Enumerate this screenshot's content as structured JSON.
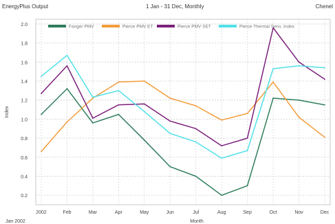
{
  "header": {
    "left": "EnergyPlus Output",
    "center": "1 Jan - 31 Dec, Monthly",
    "right": "Chenel"
  },
  "chart_data": {
    "type": "line",
    "xlabel": "Month",
    "ylabel": "Index",
    "categories": [
      "2002",
      "Feb",
      "Mar",
      "Apr",
      "May",
      "Jun",
      "Jul",
      "Aug",
      "Sep",
      "Oct",
      "Nov",
      "Dec"
    ],
    "x_sub_label": "Jan 2002",
    "ylim": [
      0.1,
      2.05
    ],
    "yticks": [
      "2.0",
      "1.8",
      "1.6",
      "1.4",
      "1.2",
      "1.0",
      "0.8",
      "0.6",
      "0.4",
      "0.2"
    ],
    "grid": true,
    "legend_position": "top",
    "series": [
      {
        "name": "Fanger PMV",
        "color": "#2e7d5b",
        "values": [
          1.05,
          1.32,
          0.96,
          1.05,
          0.78,
          0.5,
          0.4,
          0.2,
          0.3,
          1.22,
          1.2,
          1.15
        ]
      },
      {
        "name": "Pierce PMV ET",
        "color": "#f39c3a",
        "values": [
          0.66,
          0.97,
          1.22,
          1.39,
          1.4,
          1.22,
          1.14,
          0.99,
          1.06,
          1.39,
          1.02,
          0.81
        ]
      },
      {
        "name": "Pierce PMV SET",
        "color": "#7b1f7a",
        "values": [
          1.27,
          1.56,
          1.01,
          1.15,
          1.16,
          0.98,
          0.9,
          0.72,
          0.8,
          1.96,
          1.6,
          1.42
        ]
      },
      {
        "name": "Pierce Thermal Sens. Index",
        "color": "#4fe0e8",
        "values": [
          1.45,
          1.67,
          1.23,
          1.3,
          1.08,
          0.85,
          0.76,
          0.59,
          0.67,
          1.53,
          1.56,
          1.54
        ]
      }
    ]
  }
}
